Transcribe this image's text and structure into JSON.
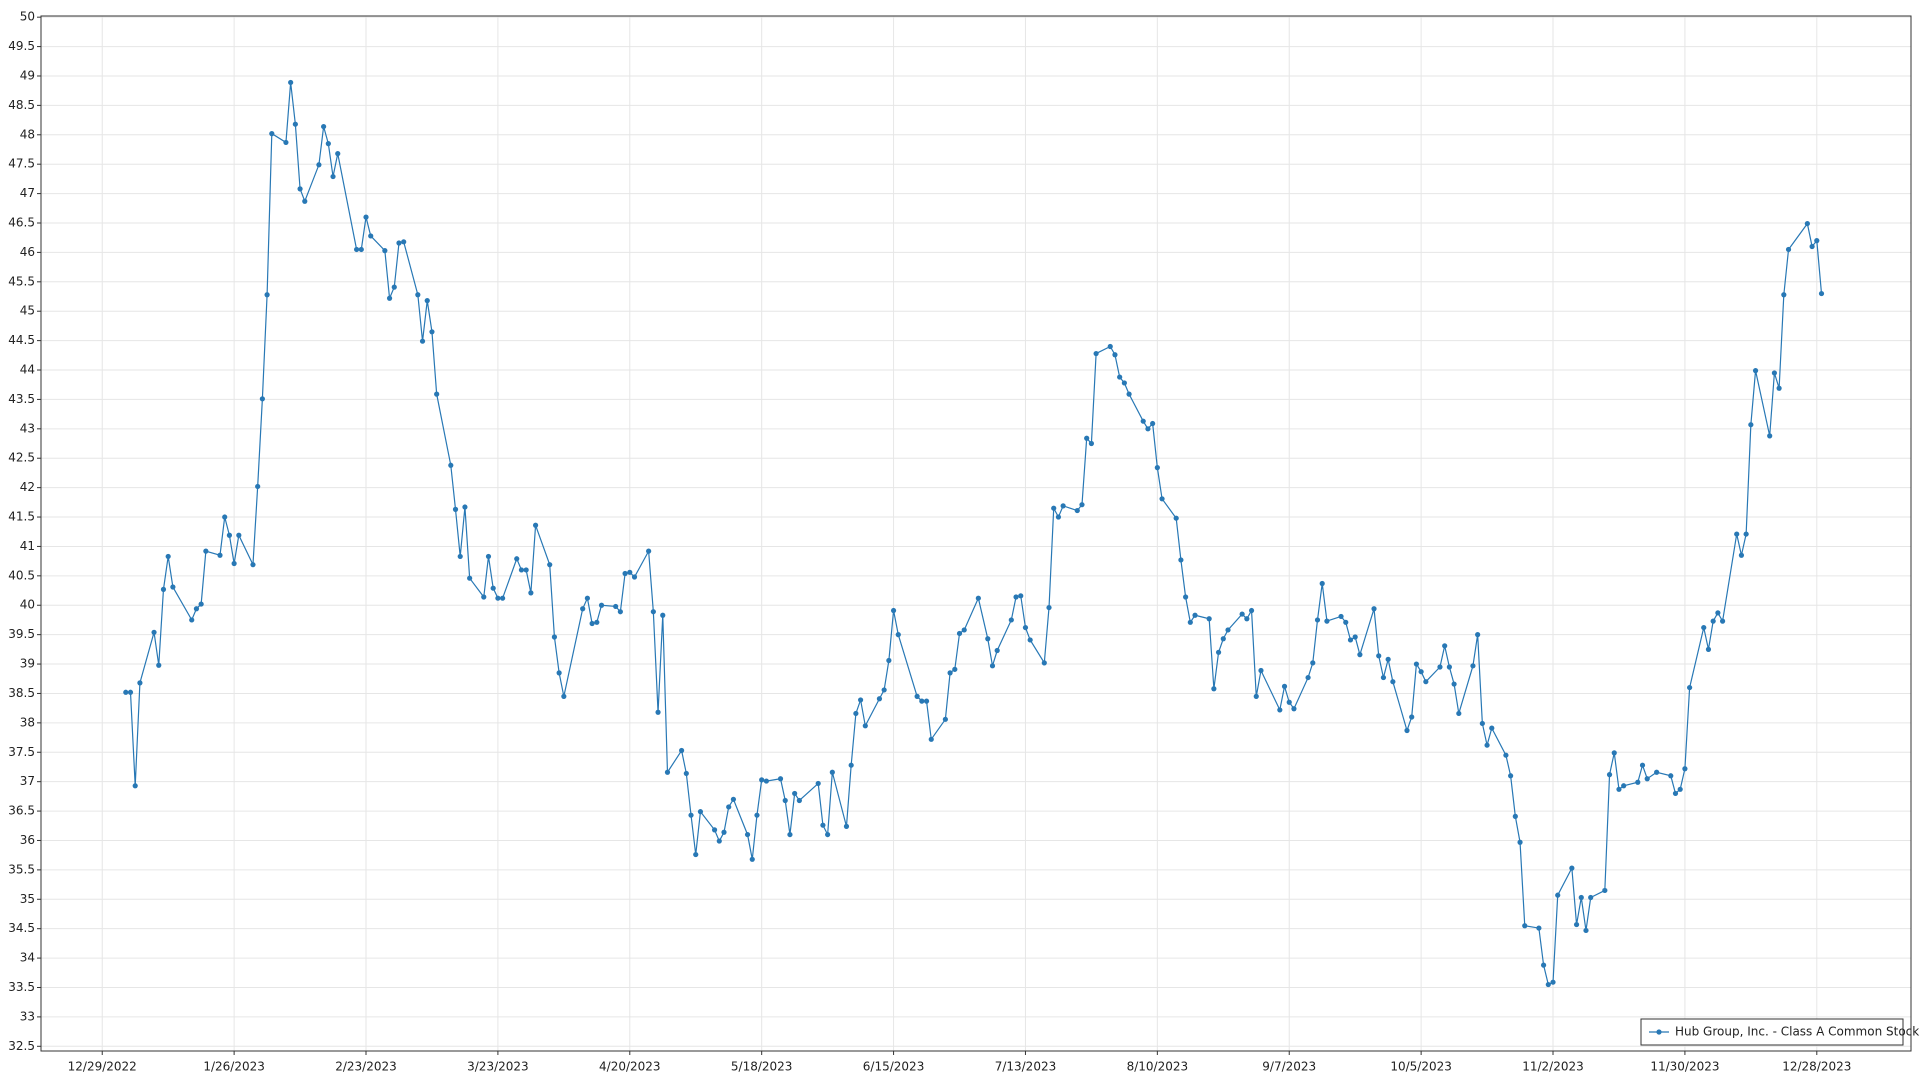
{
  "chart_data": {
    "type": "line",
    "x": [
      "2023-01-03",
      "2023-01-04",
      "2023-01-05",
      "2023-01-06",
      "2023-01-09",
      "2023-01-10",
      "2023-01-11",
      "2023-01-12",
      "2023-01-13",
      "2023-01-17",
      "2023-01-18",
      "2023-01-19",
      "2023-01-20",
      "2023-01-23",
      "2023-01-24",
      "2023-01-25",
      "2023-01-26",
      "2023-01-27",
      "2023-01-30",
      "2023-01-31",
      "2023-02-01",
      "2023-02-02",
      "2023-02-03",
      "2023-02-06",
      "2023-02-07",
      "2023-02-08",
      "2023-02-09",
      "2023-02-10",
      "2023-02-13",
      "2023-02-14",
      "2023-02-15",
      "2023-02-16",
      "2023-02-17",
      "2023-02-21",
      "2023-02-22",
      "2023-02-23",
      "2023-02-24",
      "2023-02-27",
      "2023-02-28",
      "2023-03-01",
      "2023-03-02",
      "2023-03-03",
      "2023-03-06",
      "2023-03-07",
      "2023-03-08",
      "2023-03-09",
      "2023-03-10",
      "2023-03-13",
      "2023-03-14",
      "2023-03-15",
      "2023-03-16",
      "2023-03-17",
      "2023-03-20",
      "2023-03-21",
      "2023-03-22",
      "2023-03-23",
      "2023-03-24",
      "2023-03-27",
      "2023-03-28",
      "2023-03-29",
      "2023-03-30",
      "2023-03-31",
      "2023-04-03",
      "2023-04-04",
      "2023-04-05",
      "2023-04-06",
      "2023-04-10",
      "2023-04-11",
      "2023-04-12",
      "2023-04-13",
      "2023-04-14",
      "2023-04-17",
      "2023-04-18",
      "2023-04-19",
      "2023-04-20",
      "2023-04-21",
      "2023-04-24",
      "2023-04-25",
      "2023-04-26",
      "2023-04-27",
      "2023-04-28",
      "2023-05-01",
      "2023-05-02",
      "2023-05-03",
      "2023-05-04",
      "2023-05-05",
      "2023-05-08",
      "2023-05-09",
      "2023-05-10",
      "2023-05-11",
      "2023-05-12",
      "2023-05-15",
      "2023-05-16",
      "2023-05-17",
      "2023-05-18",
      "2023-05-19",
      "2023-05-22",
      "2023-05-23",
      "2023-05-24",
      "2023-05-25",
      "2023-05-26",
      "2023-05-30",
      "2023-05-31",
      "2023-06-01",
      "2023-06-02",
      "2023-06-05",
      "2023-06-06",
      "2023-06-07",
      "2023-06-08",
      "2023-06-09",
      "2023-06-12",
      "2023-06-13",
      "2023-06-14",
      "2023-06-15",
      "2023-06-16",
      "2023-06-20",
      "2023-06-21",
      "2023-06-22",
      "2023-06-23",
      "2023-06-26",
      "2023-06-27",
      "2023-06-28",
      "2023-06-29",
      "2023-06-30",
      "2023-07-03",
      "2023-07-05",
      "2023-07-06",
      "2023-07-07",
      "2023-07-10",
      "2023-07-11",
      "2023-07-12",
      "2023-07-13",
      "2023-07-14",
      "2023-07-17",
      "2023-07-18",
      "2023-07-19",
      "2023-07-20",
      "2023-07-21",
      "2023-07-24",
      "2023-07-25",
      "2023-07-26",
      "2023-07-27",
      "2023-07-28",
      "2023-07-31",
      "2023-08-01",
      "2023-08-02",
      "2023-08-03",
      "2023-08-04",
      "2023-08-07",
      "2023-08-08",
      "2023-08-09",
      "2023-08-10",
      "2023-08-11",
      "2023-08-14",
      "2023-08-15",
      "2023-08-16",
      "2023-08-17",
      "2023-08-18",
      "2023-08-21",
      "2023-08-22",
      "2023-08-23",
      "2023-08-24",
      "2023-08-25",
      "2023-08-28",
      "2023-08-29",
      "2023-08-30",
      "2023-08-31",
      "2023-09-01",
      "2023-09-05",
      "2023-09-06",
      "2023-09-07",
      "2023-09-08",
      "2023-09-11",
      "2023-09-12",
      "2023-09-13",
      "2023-09-14",
      "2023-09-15",
      "2023-09-18",
      "2023-09-19",
      "2023-09-20",
      "2023-09-21",
      "2023-09-22",
      "2023-09-25",
      "2023-09-26",
      "2023-09-27",
      "2023-09-28",
      "2023-09-29",
      "2023-10-02",
      "2023-10-03",
      "2023-10-04",
      "2023-10-05",
      "2023-10-06",
      "2023-10-09",
      "2023-10-10",
      "2023-10-11",
      "2023-10-12",
      "2023-10-13",
      "2023-10-16",
      "2023-10-17",
      "2023-10-18",
      "2023-10-19",
      "2023-10-20",
      "2023-10-23",
      "2023-10-24",
      "2023-10-25",
      "2023-10-26",
      "2023-10-27",
      "2023-10-30",
      "2023-10-31",
      "2023-11-01",
      "2023-11-02",
      "2023-11-03",
      "2023-11-06",
      "2023-11-07",
      "2023-11-08",
      "2023-11-09",
      "2023-11-10",
      "2023-11-13",
      "2023-11-14",
      "2023-11-15",
      "2023-11-16",
      "2023-11-17",
      "2023-11-20",
      "2023-11-21",
      "2023-11-22",
      "2023-11-24",
      "2023-11-27",
      "2023-11-28",
      "2023-11-29",
      "2023-11-30",
      "2023-12-01",
      "2023-12-04",
      "2023-12-05",
      "2023-12-06",
      "2023-12-07",
      "2023-12-08",
      "2023-12-11",
      "2023-12-12",
      "2023-12-13",
      "2023-12-14",
      "2023-12-15",
      "2023-12-18",
      "2023-12-19",
      "2023-12-20",
      "2023-12-21",
      "2023-12-22",
      "2023-12-26",
      "2023-12-27",
      "2023-12-28",
      "2023-12-29"
    ],
    "series": [
      {
        "name": "Hub Group, Inc. - Class A Common Stock",
        "color": "#2878b5",
        "values": [
          38.52,
          38.52,
          36.93,
          38.68,
          39.54,
          38.98,
          40.27,
          40.83,
          40.31,
          39.75,
          39.94,
          40.02,
          40.92,
          40.85,
          41.5,
          41.19,
          40.71,
          41.19,
          40.69,
          42.02,
          43.51,
          45.28,
          48.02,
          47.87,
          48.89,
          48.18,
          47.08,
          46.87,
          47.49,
          48.14,
          47.85,
          47.29,
          47.68,
          46.05,
          46.05,
          46.6,
          46.28,
          46.03,
          45.22,
          45.41,
          46.16,
          46.18,
          45.28,
          44.49,
          45.18,
          44.65,
          43.59,
          42.38,
          41.63,
          40.83,
          41.67,
          40.46,
          40.14,
          40.83,
          40.29,
          40.12,
          40.12,
          40.79,
          40.6,
          40.6,
          40.21,
          41.36,
          40.69,
          39.46,
          38.85,
          38.45,
          39.94,
          40.12,
          39.69,
          39.71,
          40.0,
          39.98,
          39.89,
          40.54,
          40.56,
          40.48,
          40.92,
          39.89,
          38.18,
          39.83,
          37.16,
          37.53,
          37.14,
          36.43,
          35.76,
          36.49,
          36.18,
          35.99,
          36.14,
          36.57,
          36.7,
          36.1,
          35.68,
          36.43,
          37.03,
          37.01,
          37.05,
          36.68,
          36.1,
          36.8,
          36.68,
          36.97,
          36.26,
          36.1,
          37.16,
          36.24,
          37.28,
          38.16,
          38.39,
          37.95,
          38.41,
          38.56,
          39.06,
          39.91,
          39.5,
          38.45,
          38.37,
          38.37,
          37.72,
          38.06,
          38.85,
          38.91,
          39.52,
          39.58,
          40.12,
          39.43,
          38.97,
          39.23,
          39.75,
          40.14,
          40.16,
          39.62,
          39.41,
          39.02,
          39.96,
          41.65,
          41.5,
          41.69,
          41.61,
          41.71,
          42.84,
          42.75,
          44.28,
          44.4,
          44.26,
          43.88,
          43.78,
          43.59,
          43.13,
          43.0,
          43.09,
          42.34,
          41.81,
          41.48,
          40.77,
          40.14,
          39.71,
          39.83,
          39.77,
          38.58,
          39.2,
          39.43,
          39.58,
          39.85,
          39.77,
          39.91,
          38.45,
          38.89,
          38.22,
          38.62,
          38.35,
          38.24,
          38.77,
          39.02,
          39.75,
          40.37,
          39.73,
          39.81,
          39.71,
          39.41,
          39.46,
          39.16,
          39.94,
          39.14,
          38.77,
          39.08,
          38.7,
          37.87,
          38.1,
          39.0,
          38.87,
          38.7,
          38.95,
          39.31,
          38.95,
          38.66,
          38.16,
          38.97,
          39.5,
          37.99,
          37.62,
          37.91,
          37.45,
          37.1,
          36.41,
          35.97,
          34.55,
          34.51,
          33.88,
          33.55,
          33.59,
          35.07,
          35.53,
          34.57,
          35.03,
          34.47,
          35.03,
          35.15,
          37.12,
          37.49,
          36.87,
          36.93,
          36.99,
          37.28,
          37.05,
          37.16,
          37.1,
          36.8,
          36.87,
          37.22,
          38.6,
          39.62,
          39.25,
          39.73,
          39.87,
          39.73,
          41.21,
          40.85,
          41.21,
          43.07,
          43.99,
          42.88,
          43.95,
          43.69,
          45.28,
          46.05,
          46.49,
          46.1,
          46.2,
          45.3
        ]
      }
    ],
    "xlim": [
      "2022-12-16",
      "2024-01-17"
    ],
    "xticks": [
      {
        "value": "2022-12-29",
        "label": "12/29/2022"
      },
      {
        "value": "2023-01-26",
        "label": "1/26/2023"
      },
      {
        "value": "2023-02-23",
        "label": "2/23/2023"
      },
      {
        "value": "2023-03-23",
        "label": "3/23/2023"
      },
      {
        "value": "2023-04-20",
        "label": "4/20/2023"
      },
      {
        "value": "2023-05-18",
        "label": "5/18/2023"
      },
      {
        "value": "2023-06-15",
        "label": "6/15/2023"
      },
      {
        "value": "2023-07-13",
        "label": "7/13/2023"
      },
      {
        "value": "2023-08-10",
        "label": "8/10/2023"
      },
      {
        "value": "2023-09-07",
        "label": "9/7/2023"
      },
      {
        "value": "2023-10-05",
        "label": "10/5/2023"
      },
      {
        "value": "2023-11-02",
        "label": "11/2/2023"
      },
      {
        "value": "2023-11-30",
        "label": "11/30/2023"
      },
      {
        "value": "2023-12-28",
        "label": "12/28/2023"
      }
    ],
    "ylim": [
      32.42,
      50.02
    ],
    "yticks": [
      32.5,
      33,
      33.5,
      34,
      34.5,
      35,
      35.5,
      36,
      36.5,
      37,
      37.5,
      38,
      38.5,
      39,
      39.5,
      40,
      40.5,
      41,
      41.5,
      42,
      42.5,
      43,
      43.5,
      44,
      44.5,
      45,
      45.5,
      46,
      46.5,
      47,
      47.5,
      48,
      48.5,
      49,
      49.5,
      50
    ],
    "grid": true,
    "legend": "lower right"
  }
}
